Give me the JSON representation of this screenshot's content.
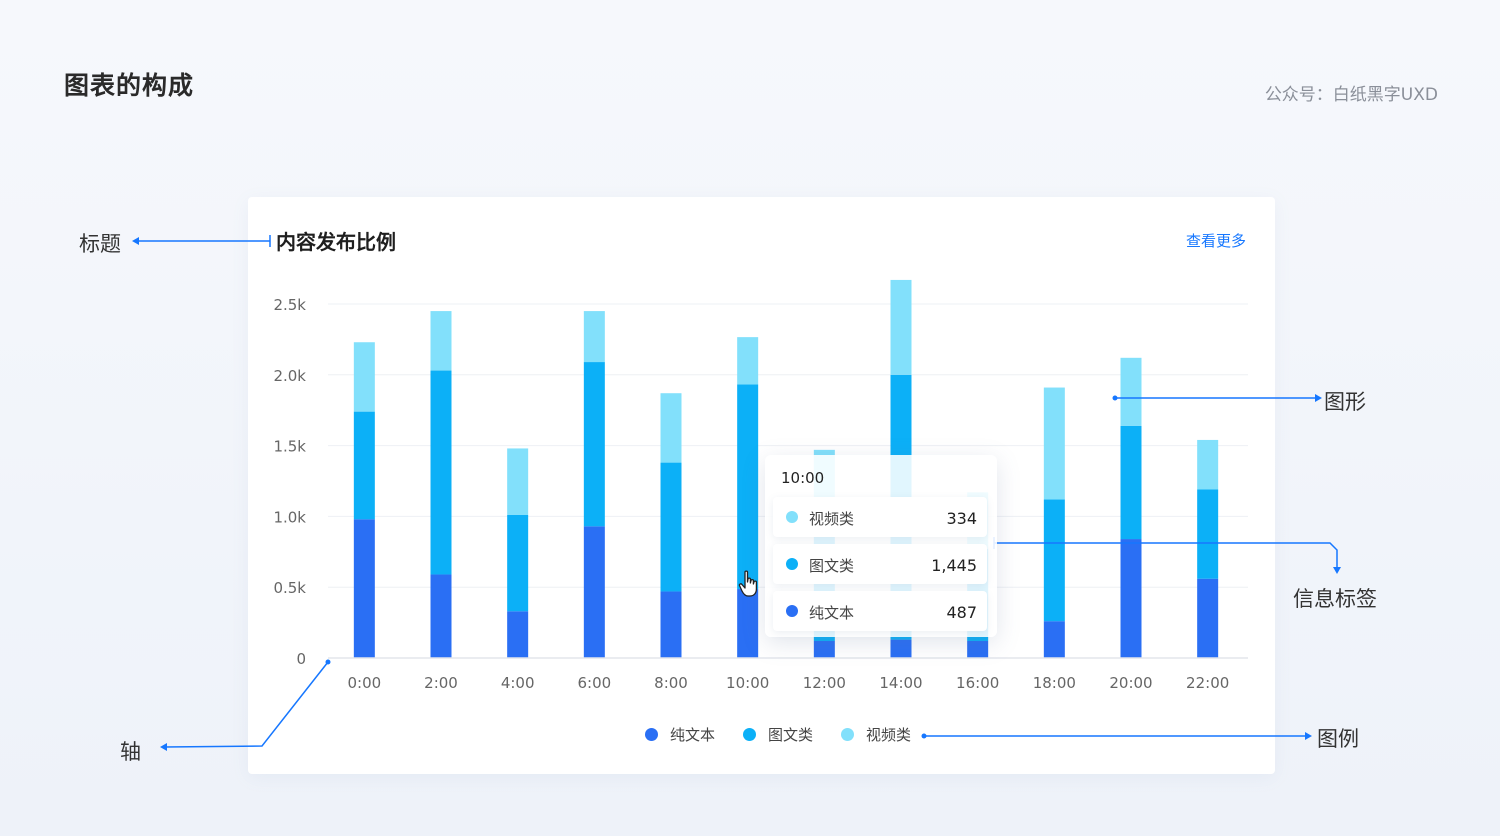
{
  "page": {
    "title": "图表的构成",
    "credit": "公众号：白纸黑字UXD"
  },
  "card": {
    "title": "内容发布比例",
    "more": "查看更多"
  },
  "annotations": {
    "title": "标题",
    "shape": "图形",
    "tooltip": "信息标签",
    "axis": "轴",
    "legend": "图例"
  },
  "colors": {
    "pure_text": "#2a6ff4",
    "image_text": "#0cb0f7",
    "video": "#82e0fb",
    "annotation_line": "#1677ff"
  },
  "tooltip": {
    "time": "10:00",
    "rows": [
      {
        "label": "视频类",
        "value": "334",
        "color": "#82e0fb"
      },
      {
        "label": "图文类",
        "value": "1,445",
        "color": "#0cb0f7"
      },
      {
        "label": "纯文本",
        "value": "487",
        "color": "#2a6ff4"
      }
    ]
  },
  "legend": [
    {
      "label": "纯文本",
      "color": "#2a6ff4"
    },
    {
      "label": "图文类",
      "color": "#0cb0f7"
    },
    {
      "label": "视频类",
      "color": "#82e0fb"
    }
  ],
  "chart_data": {
    "type": "bar",
    "stacked": true,
    "title": "内容发布比例",
    "categories": [
      "0:00",
      "2:00",
      "4:00",
      "6:00",
      "8:00",
      "10:00",
      "12:00",
      "14:00",
      "16:00",
      "18:00",
      "20:00",
      "22:00"
    ],
    "y_ticks": [
      "0",
      "0.5k",
      "1.0k",
      "1.5k",
      "2.0k",
      "2.5k"
    ],
    "ylim": [
      0,
      2500
    ],
    "grid": true,
    "legend_position": "bottom",
    "series": [
      {
        "name": "纯文本",
        "color": "#2a6ff4",
        "values": [
          980,
          590,
          330,
          930,
          470,
          487,
          120,
          130,
          120,
          260,
          840,
          560
        ]
      },
      {
        "name": "图文类",
        "color": "#0cb0f7",
        "values": [
          760,
          1440,
          680,
          1160,
          910,
          1445,
          900,
          1870,
          650,
          860,
          800,
          630
        ]
      },
      {
        "name": "视频类",
        "color": "#82e0fb",
        "values": [
          490,
          420,
          470,
          360,
          490,
          334,
          450,
          670,
          400,
          790,
          480,
          350
        ]
      }
    ]
  }
}
